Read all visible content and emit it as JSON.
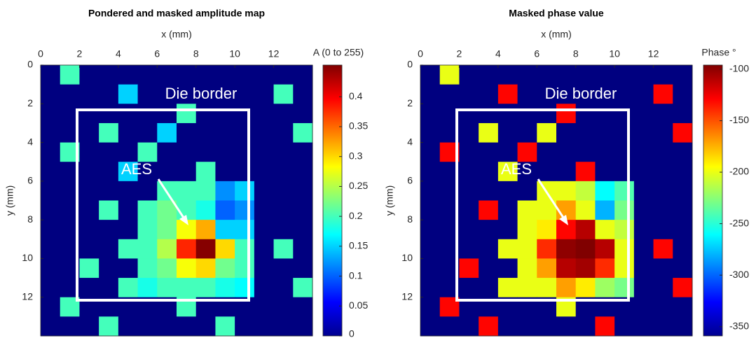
{
  "chart_data": [
    {
      "type": "heatmap",
      "title": "Pondered and masked amplitude map",
      "xlabel": "x (mm)",
      "ylabel": "y (mm)",
      "colorbar_label": "A (0 to 255)",
      "annotations": [
        "Die border",
        "AES"
      ],
      "colormap": "jet",
      "x": [
        0.5,
        1.5,
        2.5,
        3.5,
        4.5,
        5.5,
        6.5,
        7.5,
        8.5,
        9.5,
        10.5,
        11.5,
        12.5,
        13.5
      ],
      "y": [
        0.5,
        1.5,
        2.5,
        3.5,
        4.5,
        5.5,
        6.5,
        7.5,
        8.5,
        9.5,
        10.5,
        11.5,
        12.5,
        13.5
      ],
      "z": [
        [
          0,
          0.2,
          0,
          0,
          0,
          0,
          0,
          0,
          0,
          0,
          0,
          0,
          0,
          0
        ],
        [
          0,
          0,
          0,
          0,
          0.15,
          0,
          0,
          0,
          0,
          0,
          0,
          0,
          0.2,
          0
        ],
        [
          0,
          0,
          0,
          0,
          0,
          0,
          0,
          0.2,
          0,
          0,
          0,
          0,
          0,
          0
        ],
        [
          0,
          0,
          0,
          0.2,
          0,
          0,
          0.15,
          0,
          0,
          0,
          0,
          0,
          0,
          0.2
        ],
        [
          0,
          0.2,
          0,
          0,
          0,
          0.2,
          0,
          0,
          0,
          0,
          0,
          0,
          0,
          0
        ],
        [
          0,
          0,
          0,
          0,
          0.15,
          0,
          0,
          0,
          0.2,
          0,
          0,
          0,
          0,
          0
        ],
        [
          0,
          0,
          0,
          0,
          0,
          0,
          0.2,
          0.2,
          0.2,
          0.12,
          0.15,
          0,
          0,
          0
        ],
        [
          0,
          0,
          0,
          0.2,
          0,
          0.2,
          0.22,
          0.2,
          0.18,
          0.1,
          0.12,
          0,
          0,
          0
        ],
        [
          0,
          0,
          0,
          0,
          0,
          0.2,
          0.22,
          0.28,
          0.32,
          0.15,
          0.15,
          0,
          0,
          0
        ],
        [
          0,
          0,
          0,
          0,
          0.2,
          0.2,
          0.25,
          0.38,
          0.45,
          0.3,
          0.2,
          0,
          0.2,
          0
        ],
        [
          0,
          0,
          0.2,
          0,
          0,
          0.2,
          0.22,
          0.28,
          0.3,
          0.22,
          0.2,
          0,
          0,
          0
        ],
        [
          0,
          0,
          0,
          0,
          0.2,
          0.18,
          0.2,
          0.2,
          0.2,
          0.18,
          0.17,
          0,
          0,
          0.2
        ],
        [
          0,
          0.2,
          0,
          0,
          0,
          0,
          0,
          0.2,
          0,
          0,
          0,
          0,
          0,
          0
        ],
        [
          0,
          0,
          0,
          0.2,
          0,
          0,
          0,
          0,
          0,
          0.2,
          0,
          0,
          0,
          0
        ]
      ],
      "xlim": [
        0,
        14
      ],
      "ylim": [
        0,
        14
      ],
      "xticks": [
        0,
        2,
        4,
        6,
        8,
        10,
        12
      ],
      "yticks": [
        0,
        2,
        4,
        6,
        8,
        10,
        12
      ],
      "clim": [
        0,
        0.453
      ],
      "cticks": [
        0,
        0.05,
        0.1,
        0.15,
        0.2,
        0.25,
        0.3,
        0.35,
        0.4
      ]
    },
    {
      "type": "heatmap",
      "title": "Masked phase value",
      "xlabel": "x (mm)",
      "ylabel": "y (mm)",
      "colorbar_label": "Phase °",
      "annotations": [
        "Die border",
        "AES"
      ],
      "colormap": "jet",
      "x": [
        0.5,
        1.5,
        2.5,
        3.5,
        4.5,
        5.5,
        6.5,
        7.5,
        8.5,
        9.5,
        10.5,
        11.5,
        12.5,
        13.5
      ],
      "y": [
        0.5,
        1.5,
        2.5,
        3.5,
        4.5,
        5.5,
        6.5,
        7.5,
        8.5,
        9.5,
        10.5,
        11.5,
        12.5,
        13.5
      ],
      "z": [
        [
          -359,
          -200,
          -359,
          -359,
          -359,
          -359,
          -359,
          -359,
          -359,
          -359,
          -359,
          -359,
          -359,
          -359
        ],
        [
          -359,
          -359,
          -359,
          -359,
          -130,
          -359,
          -359,
          -359,
          -359,
          -359,
          -359,
          -359,
          -130,
          -359
        ],
        [
          -359,
          -359,
          -359,
          -359,
          -359,
          -359,
          -359,
          -130,
          -359,
          -359,
          -359,
          -359,
          -359,
          -359
        ],
        [
          -359,
          -359,
          -359,
          -200,
          -359,
          -359,
          -200,
          -359,
          -359,
          -359,
          -359,
          -359,
          -359,
          -130
        ],
        [
          -359,
          -130,
          -359,
          -359,
          -359,
          -130,
          -359,
          -359,
          -359,
          -359,
          -359,
          -359,
          -359,
          -359
        ],
        [
          -359,
          -359,
          -359,
          -359,
          -200,
          -359,
          -359,
          -359,
          -130,
          -359,
          -359,
          -359,
          -359,
          -359
        ],
        [
          -359,
          -359,
          -359,
          -359,
          -359,
          -359,
          -200,
          -200,
          -210,
          -260,
          -240,
          -359,
          -359,
          -359
        ],
        [
          -359,
          -359,
          -359,
          -130,
          -359,
          -200,
          -200,
          -170,
          -200,
          -280,
          -230,
          -359,
          -359,
          -359
        ],
        [
          -359,
          -359,
          -359,
          -359,
          -359,
          -200,
          -190,
          -130,
          -110,
          -200,
          -210,
          -359,
          -359,
          -359
        ],
        [
          -359,
          -359,
          -359,
          -359,
          -200,
          -200,
          -140,
          -100,
          -96,
          -110,
          -200,
          -359,
          -130,
          -359
        ],
        [
          -359,
          -359,
          -130,
          -359,
          -359,
          -200,
          -170,
          -110,
          -105,
          -140,
          -200,
          -359,
          -359,
          -359
        ],
        [
          -359,
          -359,
          -359,
          -359,
          -200,
          -200,
          -200,
          -170,
          -190,
          -220,
          -230,
          -359,
          -359,
          -130
        ],
        [
          -359,
          -130,
          -359,
          -359,
          -359,
          -359,
          -359,
          -200,
          -359,
          -359,
          -359,
          -359,
          -359,
          -359
        ],
        [
          -359,
          -359,
          -359,
          -130,
          -359,
          -359,
          -359,
          -359,
          -359,
          -130,
          -359,
          -359,
          -359,
          -359
        ]
      ],
      "xlim": [
        0,
        14
      ],
      "ylim": [
        0,
        14
      ],
      "xticks": [
        0,
        2,
        4,
        6,
        8,
        10,
        12
      ],
      "yticks": [
        0,
        2,
        4,
        6,
        8,
        10,
        12
      ],
      "clim": [
        -359,
        -96
      ],
      "cticks": [
        -350,
        -300,
        -250,
        -200,
        -150,
        -100
      ]
    }
  ]
}
